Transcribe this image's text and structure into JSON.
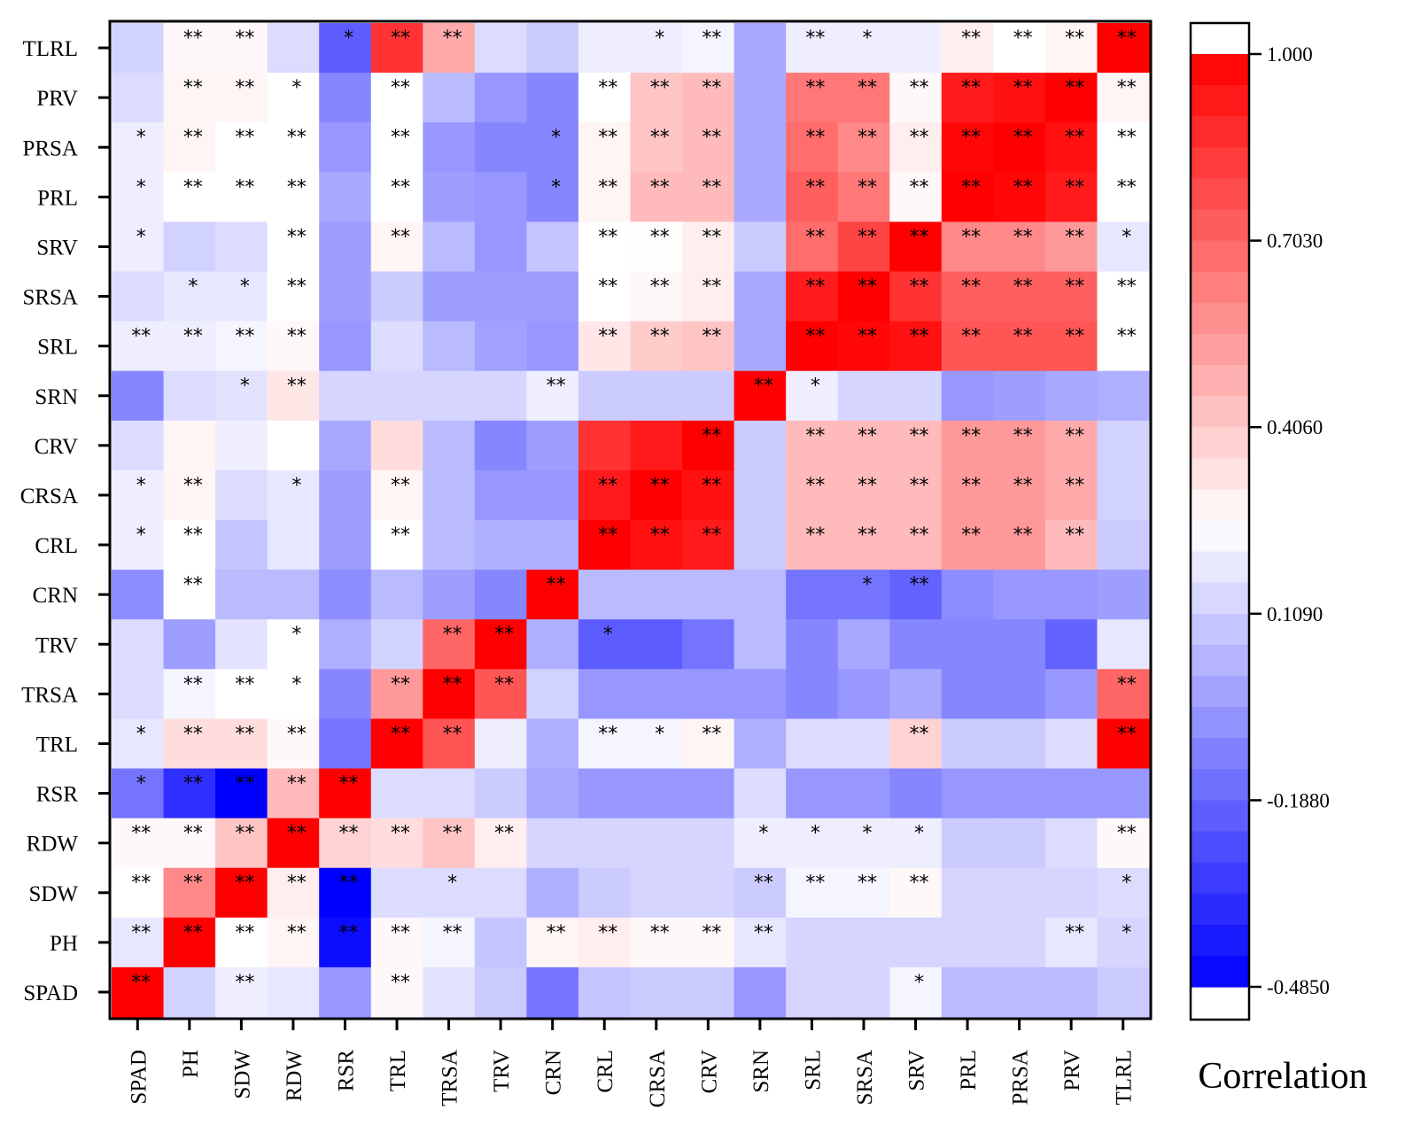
{
  "chart_data": {
    "type": "heatmap",
    "title": "",
    "xlabel": "",
    "ylabel": "",
    "colorbar_label": "Correlation",
    "color_range": [
      -0.485,
      1.0
    ],
    "colorbar_ticks": [
      "1.000",
      "0.7030",
      "0.4060",
      "0.1090",
      "-0.1880",
      "-0.4850"
    ],
    "colorbar_tick_values": [
      1.0,
      0.703,
      0.406,
      0.109,
      -0.188,
      -0.485
    ],
    "colors": {
      "low": "#0000ff",
      "mid": "#ffffff",
      "high": "#ff0000"
    },
    "columns": [
      "SPAD",
      "PH",
      "SDW",
      "RDW",
      "RSR",
      "TRL",
      "TRSA",
      "TRV",
      "CRN",
      "CRL",
      "CRSA",
      "CRV",
      "SRN",
      "SRL",
      "SRSA",
      "SRV",
      "PRL",
      "PRSA",
      "PRV",
      "TLRL"
    ],
    "rows": [
      "TLRL",
      "PRV",
      "PRSA",
      "PRL",
      "SRV",
      "SRSA",
      "SRL",
      "SRN",
      "CRV",
      "CRSA",
      "CRL",
      "CRN",
      "TRV",
      "TRSA",
      "TRL",
      "RSR",
      "RDW",
      "SDW",
      "PH",
      "SPAD"
    ],
    "values": [
      [
        0.12,
        0.27,
        0.27,
        0.15,
        -0.22,
        0.85,
        0.5,
        0.15,
        0.1,
        0.2,
        0.2,
        0.22,
        0.0,
        0.2,
        0.2,
        0.2,
        0.3,
        0.25,
        0.28,
        1.0
      ],
      [
        0.15,
        0.28,
        0.28,
        0.25,
        -0.1,
        0.25,
        0.05,
        -0.05,
        -0.1,
        0.25,
        0.42,
        0.45,
        0.0,
        0.65,
        0.65,
        0.27,
        0.92,
        0.95,
        1.0,
        0.28
      ],
      [
        0.2,
        0.28,
        0.25,
        0.25,
        -0.05,
        0.25,
        -0.05,
        -0.1,
        -0.1,
        0.28,
        0.42,
        0.45,
        0.0,
        0.68,
        0.6,
        0.3,
        0.98,
        1.0,
        0.95,
        0.25
      ],
      [
        0.2,
        0.25,
        0.25,
        0.25,
        0.0,
        0.25,
        -0.03,
        -0.05,
        -0.1,
        0.28,
        0.45,
        0.45,
        0.0,
        0.72,
        0.65,
        0.27,
        1.0,
        0.98,
        0.92,
        0.25
      ],
      [
        0.2,
        0.12,
        0.15,
        0.25,
        -0.03,
        0.28,
        0.05,
        -0.05,
        0.08,
        0.25,
        0.26,
        0.3,
        0.1,
        0.68,
        0.8,
        1.0,
        0.6,
        0.6,
        0.55,
        0.18
      ],
      [
        0.15,
        0.18,
        0.18,
        0.25,
        -0.03,
        0.1,
        -0.03,
        -0.03,
        -0.03,
        0.25,
        0.27,
        0.3,
        0.0,
        0.92,
        1.0,
        0.85,
        0.72,
        0.72,
        0.72,
        0.25
      ],
      [
        0.2,
        0.2,
        0.22,
        0.27,
        -0.05,
        0.15,
        0.05,
        -0.02,
        -0.05,
        0.32,
        0.4,
        0.42,
        0.0,
        1.0,
        0.98,
        0.95,
        0.75,
        0.75,
        0.75,
        0.25
      ],
      [
        -0.1,
        0.15,
        0.17,
        0.32,
        0.13,
        0.13,
        0.13,
        0.13,
        0.2,
        0.1,
        0.1,
        0.1,
        1.0,
        0.2,
        0.13,
        0.13,
        -0.05,
        -0.03,
        0.0,
        0.02
      ],
      [
        0.15,
        0.28,
        0.2,
        0.25,
        0.0,
        0.35,
        0.05,
        -0.1,
        -0.03,
        0.85,
        0.92,
        1.0,
        0.1,
        0.45,
        0.45,
        0.45,
        0.55,
        0.55,
        0.5,
        0.12
      ],
      [
        0.2,
        0.28,
        0.15,
        0.18,
        -0.03,
        0.28,
        0.05,
        -0.05,
        -0.05,
        0.92,
        1.0,
        0.95,
        0.1,
        0.45,
        0.45,
        0.45,
        0.55,
        0.55,
        0.5,
        0.12
      ],
      [
        0.2,
        0.25,
        0.08,
        0.18,
        -0.03,
        0.25,
        0.05,
        0.02,
        0.02,
        1.0,
        0.95,
        0.92,
        0.1,
        0.45,
        0.45,
        0.45,
        0.55,
        0.55,
        0.45,
        0.1
      ],
      [
        -0.08,
        0.25,
        0.05,
        0.05,
        -0.08,
        0.05,
        -0.03,
        -0.1,
        1.0,
        0.05,
        0.05,
        0.05,
        0.05,
        -0.15,
        -0.15,
        -0.2,
        -0.08,
        -0.05,
        -0.05,
        -0.03
      ],
      [
        0.15,
        -0.03,
        0.17,
        0.25,
        0.02,
        0.12,
        0.7,
        1.0,
        0.02,
        -0.22,
        -0.22,
        -0.15,
        0.05,
        -0.1,
        0.0,
        -0.1,
        -0.1,
        -0.1,
        -0.2,
        0.18
      ],
      [
        0.15,
        0.22,
        0.25,
        0.25,
        -0.1,
        0.55,
        1.0,
        0.75,
        0.12,
        -0.05,
        -0.05,
        -0.05,
        -0.05,
        -0.1,
        -0.05,
        0.0,
        -0.1,
        -0.1,
        -0.05,
        0.7
      ],
      [
        0.18,
        0.35,
        0.35,
        0.27,
        -0.15,
        1.0,
        0.75,
        0.2,
        0.02,
        0.22,
        0.22,
        0.28,
        0.02,
        0.15,
        0.15,
        0.38,
        0.1,
        0.1,
        0.15,
        1.0
      ],
      [
        -0.15,
        -0.35,
        -0.485,
        0.45,
        1.0,
        0.15,
        0.15,
        0.1,
        0.0,
        -0.05,
        -0.05,
        -0.05,
        0.15,
        -0.05,
        -0.05,
        -0.1,
        -0.05,
        -0.05,
        -0.05,
        -0.05
      ],
      [
        0.27,
        0.27,
        0.42,
        1.0,
        0.38,
        0.35,
        0.42,
        0.3,
        0.13,
        0.13,
        0.13,
        0.13,
        0.2,
        0.2,
        0.2,
        0.2,
        0.1,
        0.1,
        0.15,
        0.27
      ],
      [
        0.25,
        0.6,
        1.0,
        0.3,
        -0.485,
        0.15,
        0.15,
        0.15,
        0.02,
        0.1,
        0.13,
        0.13,
        0.1,
        0.22,
        0.22,
        0.27,
        0.13,
        0.13,
        0.13,
        0.15
      ],
      [
        0.18,
        1.0,
        0.25,
        0.28,
        -0.45,
        0.27,
        0.22,
        0.08,
        0.28,
        0.3,
        0.27,
        0.27,
        0.18,
        0.13,
        0.13,
        0.13,
        0.13,
        0.13,
        0.18,
        0.13
      ],
      [
        1.0,
        0.12,
        0.2,
        0.18,
        -0.05,
        0.27,
        0.17,
        0.1,
        -0.15,
        0.08,
        0.1,
        0.1,
        -0.05,
        0.13,
        0.13,
        0.22,
        0.05,
        0.05,
        0.05,
        0.1
      ]
    ],
    "significance": [
      [
        "",
        "**",
        "**",
        "",
        "*",
        "**",
        "**",
        "",
        "",
        "",
        "*",
        "**",
        "",
        "**",
        "*",
        "",
        "**",
        "**",
        "**",
        "**"
      ],
      [
        "",
        "**",
        "**",
        "*",
        "",
        "**",
        "",
        "",
        "",
        "**",
        "**",
        "**",
        "",
        "**",
        "**",
        "**",
        "**",
        "**",
        "**",
        "**"
      ],
      [
        "*",
        "**",
        "**",
        "**",
        "",
        "**",
        "",
        "",
        "*",
        "**",
        "**",
        "**",
        "",
        "**",
        "**",
        "**",
        "**",
        "**",
        "**",
        "**"
      ],
      [
        "*",
        "**",
        "**",
        "**",
        "",
        "**",
        "",
        "",
        "*",
        "**",
        "**",
        "**",
        "",
        "**",
        "**",
        "**",
        "**",
        "**",
        "**",
        "**"
      ],
      [
        "*",
        "",
        "",
        "**",
        "",
        "**",
        "",
        "",
        "",
        "**",
        "**",
        "**",
        "",
        "**",
        "**",
        "**",
        "**",
        "**",
        "**",
        "*"
      ],
      [
        "",
        "*",
        "*",
        "**",
        "",
        "",
        "",
        "",
        "",
        "**",
        "**",
        "**",
        "",
        "**",
        "**",
        "**",
        "**",
        "**",
        "**",
        "**"
      ],
      [
        "**",
        "**",
        "**",
        "**",
        "",
        "",
        "",
        "",
        "",
        "**",
        "**",
        "**",
        "",
        "**",
        "**",
        "**",
        "**",
        "**",
        "**",
        "**"
      ],
      [
        "",
        "",
        "*",
        "**",
        "",
        "",
        "",
        "",
        "**",
        "",
        "",
        "",
        "**",
        "*",
        "",
        "",
        "",
        "",
        "",
        ""
      ],
      [
        "",
        "",
        "",
        "",
        "",
        "",
        "",
        "",
        "",
        "",
        "",
        "**",
        "",
        "**",
        "**",
        "**",
        "**",
        "**",
        "**",
        ""
      ],
      [
        "*",
        "**",
        "",
        "*",
        "",
        "**",
        "",
        "",
        "",
        "**",
        "**",
        "**",
        "",
        "**",
        "**",
        "**",
        "**",
        "**",
        "**",
        ""
      ],
      [
        "*",
        "**",
        "",
        "",
        "",
        "**",
        "",
        "",
        "",
        "**",
        "**",
        "**",
        "",
        "**",
        "**",
        "**",
        "**",
        "**",
        "**",
        ""
      ],
      [
        "",
        "**",
        "",
        "",
        "",
        "",
        "",
        "",
        "**",
        "",
        "",
        "",
        "",
        "",
        "*",
        "**",
        "",
        "",
        "",
        ""
      ],
      [
        "",
        "",
        "",
        "*",
        "",
        "",
        "**",
        "**",
        "",
        "*",
        "",
        "",
        "",
        "",
        "",
        "",
        "",
        "",
        "",
        ""
      ],
      [
        "",
        "**",
        "**",
        "*",
        "",
        "**",
        "**",
        "**",
        "",
        "",
        "",
        "",
        "",
        "",
        "",
        "",
        "",
        "",
        "",
        "**"
      ],
      [
        "*",
        "**",
        "**",
        "**",
        "",
        "**",
        "**",
        "",
        "",
        "**",
        "*",
        "**",
        "",
        "",
        "",
        "**",
        "",
        "",
        "",
        "**"
      ],
      [
        "*",
        "**",
        "**",
        "**",
        "**",
        "",
        "",
        "",
        "",
        "",
        "",
        "",
        "",
        "",
        "",
        "",
        "",
        "",
        "",
        ""
      ],
      [
        "**",
        "**",
        "**",
        "**",
        "**",
        "**",
        "**",
        "**",
        "",
        "",
        "",
        "",
        "*",
        "*",
        "*",
        "*",
        "",
        "",
        "",
        "**"
      ],
      [
        "**",
        "**",
        "**",
        "**",
        "**",
        "",
        "*",
        "",
        "",
        "",
        "",
        "",
        "**",
        "**",
        "**",
        "**",
        "",
        "",
        "",
        "*"
      ],
      [
        "**",
        "**",
        "**",
        "**",
        "**",
        "**",
        "**",
        "",
        "**",
        "**",
        "**",
        "**",
        "**",
        "",
        "",
        "",
        "",
        "",
        "**",
        "*"
      ],
      [
        "**",
        "",
        "**",
        "",
        "",
        "**",
        "",
        "",
        "",
        "",
        "",
        "",
        "",
        "",
        "",
        "*",
        "",
        "",
        "",
        ""
      ]
    ]
  }
}
